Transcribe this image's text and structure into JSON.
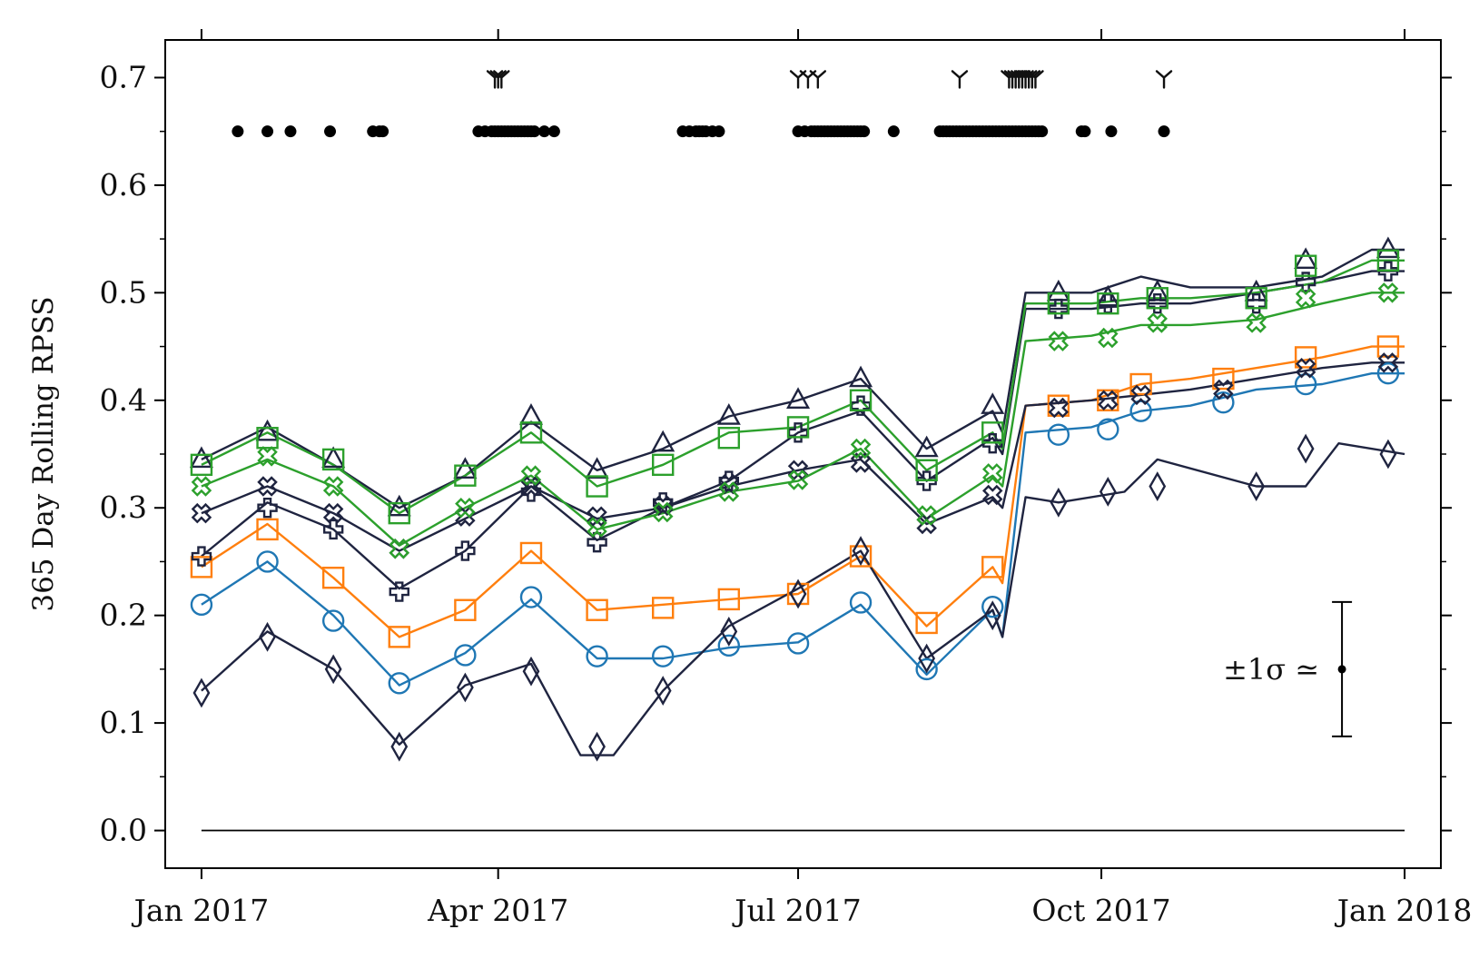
{
  "chart_data": {
    "type": "line",
    "title": "",
    "xlabel": "",
    "ylabel": "365 Day Rolling RPSS",
    "x_range_days": [
      -11,
      376
    ],
    "ylim": [
      -0.035,
      0.735
    ],
    "x_ticks": [
      {
        "label": "Jan 2017",
        "day": 0
      },
      {
        "label": "Apr 2017",
        "day": 90
      },
      {
        "label": "Jul 2017",
        "day": 181
      },
      {
        "label": "Oct 2017",
        "day": 273
      },
      {
        "label": "Jan 2018",
        "day": 365
      }
    ],
    "y_ticks": [
      {
        "label": "0.0",
        "value": 0.0
      },
      {
        "label": "0.1",
        "value": 0.1
      },
      {
        "label": "0.2",
        "value": 0.2
      },
      {
        "label": "0.3",
        "value": 0.3
      },
      {
        "label": "0.4",
        "value": 0.4
      },
      {
        "label": "0.5",
        "value": 0.5
      },
      {
        "label": "0.6",
        "value": 0.6
      },
      {
        "label": "0.7",
        "value": 0.7
      }
    ],
    "colors": {
      "blue": "#1f77b4",
      "orange": "#ff7f0e",
      "green": "#2ca02c",
      "navy": "#1f2440",
      "black": "#000000"
    },
    "series": [
      {
        "name": "circle-blue",
        "color": "#1f77b4",
        "marker": "circle",
        "x": [
          0,
          20,
          40,
          60,
          80,
          100,
          120,
          140,
          160,
          181,
          200,
          220,
          240,
          243,
          250,
          270,
          285,
          300,
          320,
          340,
          355,
          365
        ],
        "y": [
          0.21,
          0.25,
          0.2,
          0.135,
          0.165,
          0.215,
          0.16,
          0.16,
          0.17,
          0.175,
          0.21,
          0.145,
          0.205,
          0.18,
          0.37,
          0.375,
          0.39,
          0.395,
          0.41,
          0.415,
          0.425,
          0.425
        ],
        "marker_x": [
          0,
          20,
          40,
          60,
          80,
          100,
          120,
          140,
          160,
          181,
          200,
          220,
          240,
          260,
          275,
          285,
          310,
          335,
          360
        ],
        "marker_y": [
          0.21,
          0.25,
          0.195,
          0.137,
          0.163,
          0.217,
          0.162,
          0.162,
          0.172,
          0.174,
          0.212,
          0.15,
          0.208,
          0.368,
          0.373,
          0.39,
          0.398,
          0.415,
          0.425
        ]
      },
      {
        "name": "square-orange",
        "color": "#ff7f0e",
        "marker": "square",
        "x": [
          0,
          20,
          40,
          60,
          80,
          100,
          120,
          140,
          160,
          181,
          200,
          220,
          240,
          243,
          250,
          270,
          285,
          300,
          320,
          340,
          355,
          365
        ],
        "y": [
          0.245,
          0.285,
          0.235,
          0.18,
          0.205,
          0.26,
          0.205,
          0.21,
          0.215,
          0.22,
          0.255,
          0.19,
          0.245,
          0.23,
          0.395,
          0.4,
          0.415,
          0.42,
          0.43,
          0.44,
          0.45,
          0.45
        ],
        "marker_x": [
          0,
          20,
          40,
          60,
          80,
          100,
          120,
          140,
          160,
          181,
          200,
          220,
          240,
          260,
          275,
          285,
          310,
          335,
          360
        ],
        "marker_y": [
          0.245,
          0.28,
          0.235,
          0.18,
          0.205,
          0.258,
          0.205,
          0.207,
          0.215,
          0.22,
          0.255,
          0.193,
          0.245,
          0.395,
          0.4,
          0.415,
          0.42,
          0.44,
          0.45
        ]
      },
      {
        "name": "diamond-navy",
        "color": "#1f2440",
        "marker": "diamond",
        "x": [
          0,
          20,
          40,
          60,
          80,
          100,
          115,
          125,
          140,
          160,
          181,
          200,
          220,
          240,
          243,
          250,
          260,
          280,
          290,
          320,
          335,
          345,
          365
        ],
        "y": [
          0.13,
          0.185,
          0.15,
          0.08,
          0.135,
          0.155,
          0.07,
          0.07,
          0.13,
          0.19,
          0.225,
          0.26,
          0.16,
          0.205,
          0.18,
          0.31,
          0.305,
          0.315,
          0.345,
          0.32,
          0.32,
          0.36,
          0.35
        ],
        "marker_x": [
          0,
          20,
          40,
          60,
          80,
          100,
          120,
          140,
          160,
          181,
          200,
          220,
          240,
          260,
          275,
          290,
          320,
          335,
          360
        ],
        "marker_y": [
          0.128,
          0.18,
          0.15,
          0.078,
          0.133,
          0.148,
          0.078,
          0.13,
          0.185,
          0.22,
          0.26,
          0.16,
          0.2,
          0.305,
          0.315,
          0.32,
          0.32,
          0.355,
          0.35
        ]
      },
      {
        "name": "x-navy",
        "color": "#1f2440",
        "marker": "x",
        "x": [
          0,
          20,
          40,
          60,
          80,
          100,
          120,
          140,
          160,
          181,
          200,
          220,
          240,
          243,
          250,
          270,
          285,
          300,
          320,
          340,
          355,
          365
        ],
        "y": [
          0.295,
          0.32,
          0.295,
          0.26,
          0.29,
          0.32,
          0.29,
          0.3,
          0.32,
          0.335,
          0.345,
          0.285,
          0.31,
          0.3,
          0.395,
          0.4,
          0.405,
          0.41,
          0.42,
          0.43,
          0.435,
          0.435
        ],
        "marker_x": [
          0,
          20,
          40,
          60,
          80,
          100,
          120,
          140,
          160,
          181,
          200,
          220,
          240,
          260,
          275,
          285,
          310,
          335,
          360
        ],
        "marker_y": [
          0.295,
          0.32,
          0.295,
          0.262,
          0.292,
          0.32,
          0.292,
          0.302,
          0.322,
          0.335,
          0.342,
          0.285,
          0.312,
          0.393,
          0.4,
          0.405,
          0.41,
          0.43,
          0.435
        ]
      },
      {
        "name": "plus-navy",
        "color": "#1f2440",
        "marker": "plus",
        "x": [
          0,
          20,
          40,
          60,
          80,
          100,
          120,
          140,
          160,
          181,
          200,
          220,
          240,
          243,
          250,
          270,
          285,
          300,
          320,
          340,
          355,
          365
        ],
        "y": [
          0.255,
          0.305,
          0.28,
          0.225,
          0.26,
          0.32,
          0.27,
          0.3,
          0.325,
          0.37,
          0.39,
          0.325,
          0.365,
          0.35,
          0.485,
          0.485,
          0.49,
          0.49,
          0.5,
          0.51,
          0.52,
          0.52
        ],
        "marker_x": [
          0,
          20,
          40,
          60,
          80,
          100,
          120,
          140,
          160,
          181,
          200,
          220,
          240,
          260,
          275,
          290,
          320,
          335,
          360
        ],
        "marker_y": [
          0.255,
          0.3,
          0.28,
          0.222,
          0.26,
          0.315,
          0.268,
          0.305,
          0.325,
          0.37,
          0.395,
          0.325,
          0.36,
          0.485,
          0.49,
          0.49,
          0.49,
          0.51,
          0.52
        ]
      },
      {
        "name": "triangle-navy",
        "color": "#1f2440",
        "marker": "triangle",
        "x": [
          0,
          20,
          40,
          60,
          80,
          100,
          120,
          140,
          160,
          181,
          200,
          220,
          240,
          243,
          250,
          270,
          285,
          300,
          320,
          340,
          355,
          365
        ],
        "y": [
          0.345,
          0.375,
          0.34,
          0.3,
          0.33,
          0.38,
          0.335,
          0.355,
          0.385,
          0.4,
          0.42,
          0.355,
          0.39,
          0.37,
          0.5,
          0.5,
          0.515,
          0.505,
          0.505,
          0.515,
          0.54,
          0.54
        ],
        "marker_x": [
          0,
          20,
          40,
          60,
          80,
          100,
          120,
          140,
          160,
          181,
          200,
          220,
          240,
          260,
          275,
          290,
          320,
          335,
          360
        ],
        "marker_y": [
          0.345,
          0.37,
          0.345,
          0.3,
          0.335,
          0.385,
          0.335,
          0.36,
          0.385,
          0.4,
          0.42,
          0.355,
          0.395,
          0.5,
          0.495,
          0.5,
          0.5,
          0.53,
          0.54
        ]
      },
      {
        "name": "square-green",
        "color": "#2ca02c",
        "marker": "square",
        "x": [
          0,
          20,
          40,
          60,
          80,
          100,
          120,
          140,
          160,
          181,
          200,
          220,
          240,
          243,
          250,
          270,
          285,
          300,
          320,
          340,
          355,
          365
        ],
        "y": [
          0.34,
          0.37,
          0.34,
          0.295,
          0.33,
          0.37,
          0.32,
          0.34,
          0.37,
          0.375,
          0.4,
          0.335,
          0.37,
          0.355,
          0.49,
          0.49,
          0.495,
          0.495,
          0.5,
          0.51,
          0.53,
          0.53
        ],
        "marker_x": [
          0,
          20,
          40,
          60,
          80,
          100,
          120,
          140,
          160,
          181,
          200,
          220,
          240,
          260,
          275,
          290,
          320,
          335,
          360
        ],
        "marker_y": [
          0.34,
          0.365,
          0.345,
          0.295,
          0.33,
          0.37,
          0.32,
          0.34,
          0.365,
          0.375,
          0.4,
          0.335,
          0.37,
          0.49,
          0.49,
          0.495,
          0.495,
          0.525,
          0.53
        ]
      },
      {
        "name": "x-green",
        "color": "#2ca02c",
        "marker": "x",
        "x": [
          0,
          20,
          40,
          60,
          80,
          100,
          120,
          140,
          160,
          181,
          200,
          220,
          240,
          243,
          250,
          270,
          285,
          300,
          320,
          340,
          355,
          365
        ],
        "y": [
          0.32,
          0.345,
          0.32,
          0.265,
          0.3,
          0.33,
          0.28,
          0.295,
          0.315,
          0.325,
          0.355,
          0.29,
          0.33,
          0.32,
          0.455,
          0.46,
          0.47,
          0.47,
          0.475,
          0.49,
          0.5,
          0.5
        ],
        "marker_x": [
          0,
          20,
          40,
          60,
          80,
          100,
          120,
          140,
          160,
          181,
          200,
          220,
          240,
          260,
          275,
          290,
          320,
          335,
          360
        ],
        "marker_y": [
          0.32,
          0.348,
          0.32,
          0.262,
          0.3,
          0.33,
          0.282,
          0.296,
          0.315,
          0.326,
          0.355,
          0.293,
          0.332,
          0.455,
          0.458,
          0.472,
          0.472,
          0.495,
          0.5
        ]
      },
      {
        "name": "zero-baseline",
        "color": "#000000",
        "marker": "none",
        "x": [
          0,
          365
        ],
        "y": [
          0.0,
          0.0
        ],
        "marker_x": [],
        "marker_y": []
      }
    ],
    "event_markers": {
      "dot_row_value": 0.65,
      "dot_days": [
        11,
        20,
        27,
        39,
        52,
        54,
        55,
        84,
        86,
        88,
        89,
        90,
        91,
        92,
        93,
        94,
        95,
        96,
        97,
        98,
        99,
        100,
        101,
        104,
        107,
        146,
        148,
        150,
        151,
        152,
        153,
        155,
        157,
        181,
        183,
        185,
        186,
        187,
        188,
        189,
        190,
        191,
        192,
        193,
        194,
        195,
        196,
        197,
        198,
        199,
        200,
        201,
        210,
        224,
        225,
        226,
        227,
        228,
        229,
        230,
        231,
        232,
        233,
        234,
        235,
        236,
        237,
        238,
        239,
        240,
        241,
        242,
        243,
        244,
        245,
        246,
        247,
        248,
        249,
        250,
        251,
        252,
        253,
        254,
        255,
        267,
        268,
        276,
        292
      ],
      "y_marker_row_value": 0.7,
      "y_marker_days": [
        89,
        90,
        91,
        181,
        184,
        187,
        230,
        245,
        246,
        247,
        248,
        249,
        250,
        251,
        252,
        253,
        292
      ]
    },
    "error_bar": {
      "label": "±1σ ≃",
      "day": 346,
      "center": 0.15,
      "half_width": 0.0625
    }
  }
}
